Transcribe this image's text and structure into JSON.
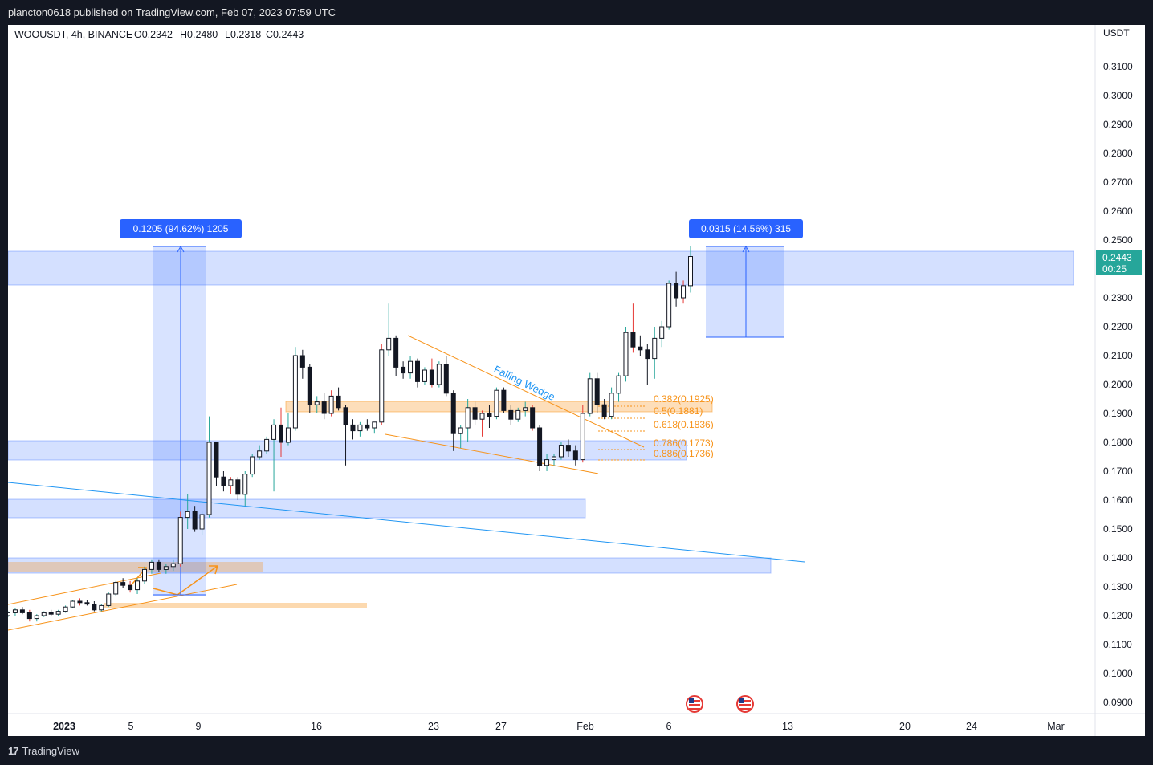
{
  "header": {
    "published": "plancton0618 published on TradingView.com, Feb 07, 2023 07:59 UTC"
  },
  "legend": {
    "symbol": "WOOUSDT, 4h, BINANCE",
    "open": "O0.2342",
    "high": "H0.2480",
    "low": "L0.2318",
    "close": "C0.2443"
  },
  "axis": {
    "currency": "USDT",
    "price_ticks": [
      "0.3100",
      "0.3000",
      "0.2900",
      "0.2800",
      "0.2700",
      "0.2600",
      "0.2500",
      "0.2300",
      "0.2200",
      "0.2100",
      "0.2000",
      "0.1900",
      "0.1800",
      "0.1700",
      "0.1600",
      "0.1500",
      "0.1400",
      "0.1300",
      "0.1200",
      "0.1100",
      "0.1000",
      "0.0900"
    ],
    "time_ticks": [
      "2023",
      "5",
      "9",
      "16",
      "23",
      "27",
      "Feb",
      "6",
      "13",
      "20",
      "24",
      "Mar"
    ]
  },
  "current_price": {
    "price": "0.2443",
    "countdown": "00:25",
    "color": "#26a69a"
  },
  "measures": [
    {
      "label": "0.1205 (94.62%) 1205"
    },
    {
      "label": "0.0315 (14.56%) 315"
    }
  ],
  "fib_levels": [
    "0.382(0.1925)",
    "0.5(0.1881)",
    "0.618(0.1836)",
    "0.786(0.1773)",
    "0.886(0.1736)"
  ],
  "annotations": {
    "wedge": "Falling Wedge"
  },
  "footer": {
    "brand": "TradingView"
  },
  "colors": {
    "up": "#000000",
    "down": "#000000",
    "zone": "#2962ff",
    "fib": "#f7931a",
    "trend": "#2196f3"
  },
  "chart_data": {
    "type": "candlestick",
    "symbol": "WOOUSDT",
    "interval": "4h",
    "exchange": "BINANCE",
    "ylim": [
      0.086,
      0.325
    ],
    "series_ohlc": [
      [
        0.12,
        0.1215,
        0.1195,
        0.121
      ],
      [
        0.121,
        0.1225,
        0.12,
        0.122
      ],
      [
        0.122,
        0.123,
        0.1205,
        0.121
      ],
      [
        0.121,
        0.122,
        0.118,
        0.119
      ],
      [
        0.119,
        0.1205,
        0.118,
        0.12
      ],
      [
        0.12,
        0.1215,
        0.1195,
        0.121
      ],
      [
        0.121,
        0.122,
        0.12,
        0.1205
      ],
      [
        0.1205,
        0.122,
        0.12,
        0.1215
      ],
      [
        0.1215,
        0.1235,
        0.121,
        0.123
      ],
      [
        0.123,
        0.1255,
        0.1225,
        0.125
      ],
      [
        0.125,
        0.126,
        0.1235,
        0.1245
      ],
      [
        0.1245,
        0.1255,
        0.1235,
        0.124
      ],
      [
        0.124,
        0.125,
        0.1215,
        0.122
      ],
      [
        0.122,
        0.124,
        0.1215,
        0.1235
      ],
      [
        0.1235,
        0.128,
        0.123,
        0.1275
      ],
      [
        0.1275,
        0.132,
        0.127,
        0.1315
      ],
      [
        0.1315,
        0.133,
        0.1295,
        0.1305
      ],
      [
        0.1305,
        0.132,
        0.128,
        0.129
      ],
      [
        0.129,
        0.133,
        0.1275,
        0.132
      ],
      [
        0.132,
        0.137,
        0.131,
        0.136
      ],
      [
        0.136,
        0.1395,
        0.1345,
        0.1385
      ],
      [
        0.1385,
        0.1395,
        0.135,
        0.136
      ],
      [
        0.136,
        0.138,
        0.1345,
        0.137
      ],
      [
        0.137,
        0.1395,
        0.1355,
        0.138
      ],
      [
        0.138,
        0.156,
        0.137,
        0.154
      ],
      [
        0.154,
        0.162,
        0.15,
        0.156
      ],
      [
        0.156,
        0.158,
        0.149,
        0.15
      ],
      [
        0.15,
        0.156,
        0.148,
        0.155
      ],
      [
        0.155,
        0.189,
        0.154,
        0.18
      ],
      [
        0.18,
        0.18,
        0.165,
        0.168
      ],
      [
        0.168,
        0.17,
        0.163,
        0.165
      ],
      [
        0.165,
        0.168,
        0.162,
        0.167
      ],
      [
        0.167,
        0.168,
        0.16,
        0.162
      ],
      [
        0.162,
        0.17,
        0.158,
        0.169
      ],
      [
        0.169,
        0.176,
        0.168,
        0.175
      ],
      [
        0.175,
        0.179,
        0.174,
        0.177
      ],
      [
        0.177,
        0.182,
        0.176,
        0.181
      ],
      [
        0.181,
        0.188,
        0.163,
        0.186
      ],
      [
        0.186,
        0.192,
        0.175,
        0.18
      ],
      [
        0.18,
        0.19,
        0.179,
        0.185
      ],
      [
        0.185,
        0.213,
        0.184,
        0.21
      ],
      [
        0.21,
        0.212,
        0.202,
        0.206
      ],
      [
        0.206,
        0.207,
        0.19,
        0.193
      ],
      [
        0.193,
        0.196,
        0.19,
        0.194
      ],
      [
        0.194,
        0.197,
        0.188,
        0.19
      ],
      [
        0.19,
        0.198,
        0.189,
        0.196
      ],
      [
        0.196,
        0.199,
        0.191,
        0.192
      ],
      [
        0.192,
        0.193,
        0.172,
        0.186
      ],
      [
        0.186,
        0.188,
        0.181,
        0.184
      ],
      [
        0.184,
        0.187,
        0.182,
        0.186
      ],
      [
        0.186,
        0.188,
        0.184,
        0.185
      ],
      [
        0.185,
        0.187,
        0.183,
        0.187
      ],
      [
        0.187,
        0.214,
        0.186,
        0.212
      ],
      [
        0.212,
        0.228,
        0.21,
        0.216
      ],
      [
        0.216,
        0.217,
        0.203,
        0.206
      ],
      [
        0.206,
        0.208,
        0.202,
        0.204
      ],
      [
        0.204,
        0.21,
        0.202,
        0.208
      ],
      [
        0.208,
        0.209,
        0.199,
        0.201
      ],
      [
        0.201,
        0.206,
        0.2,
        0.205
      ],
      [
        0.205,
        0.209,
        0.199,
        0.2
      ],
      [
        0.2,
        0.208,
        0.199,
        0.207
      ],
      [
        0.207,
        0.21,
        0.196,
        0.197
      ],
      [
        0.197,
        0.198,
        0.177,
        0.183
      ],
      [
        0.183,
        0.186,
        0.178,
        0.185
      ],
      [
        0.185,
        0.195,
        0.18,
        0.192
      ],
      [
        0.192,
        0.194,
        0.186,
        0.188
      ],
      [
        0.188,
        0.191,
        0.182,
        0.19
      ],
      [
        0.19,
        0.193,
        0.185,
        0.189
      ],
      [
        0.189,
        0.199,
        0.188,
        0.198
      ],
      [
        0.198,
        0.199,
        0.19,
        0.191
      ],
      [
        0.191,
        0.193,
        0.186,
        0.188
      ],
      [
        0.188,
        0.192,
        0.187,
        0.191
      ],
      [
        0.191,
        0.194,
        0.189,
        0.192
      ],
      [
        0.192,
        0.193,
        0.184,
        0.185
      ],
      [
        0.185,
        0.186,
        0.17,
        0.172
      ],
      [
        0.172,
        0.176,
        0.17,
        0.174
      ],
      [
        0.174,
        0.176,
        0.172,
        0.175
      ],
      [
        0.175,
        0.18,
        0.174,
        0.179
      ],
      [
        0.179,
        0.181,
        0.175,
        0.177
      ],
      [
        0.177,
        0.179,
        0.172,
        0.174
      ],
      [
        0.174,
        0.193,
        0.173,
        0.19
      ],
      [
        0.19,
        0.204,
        0.189,
        0.202
      ],
      [
        0.202,
        0.204,
        0.19,
        0.193
      ],
      [
        0.193,
        0.195,
        0.188,
        0.189
      ],
      [
        0.189,
        0.199,
        0.188,
        0.197
      ],
      [
        0.197,
        0.204,
        0.194,
        0.203
      ],
      [
        0.203,
        0.22,
        0.201,
        0.218
      ],
      [
        0.218,
        0.228,
        0.211,
        0.213
      ],
      [
        0.213,
        0.217,
        0.21,
        0.212
      ],
      [
        0.212,
        0.214,
        0.2,
        0.209
      ],
      [
        0.209,
        0.22,
        0.202,
        0.216
      ],
      [
        0.216,
        0.222,
        0.213,
        0.22
      ],
      [
        0.22,
        0.236,
        0.219,
        0.235
      ],
      [
        0.235,
        0.239,
        0.227,
        0.23
      ],
      [
        0.23,
        0.236,
        0.228,
        0.2342
      ],
      [
        0.2342,
        0.248,
        0.2318,
        0.2443
      ]
    ]
  }
}
